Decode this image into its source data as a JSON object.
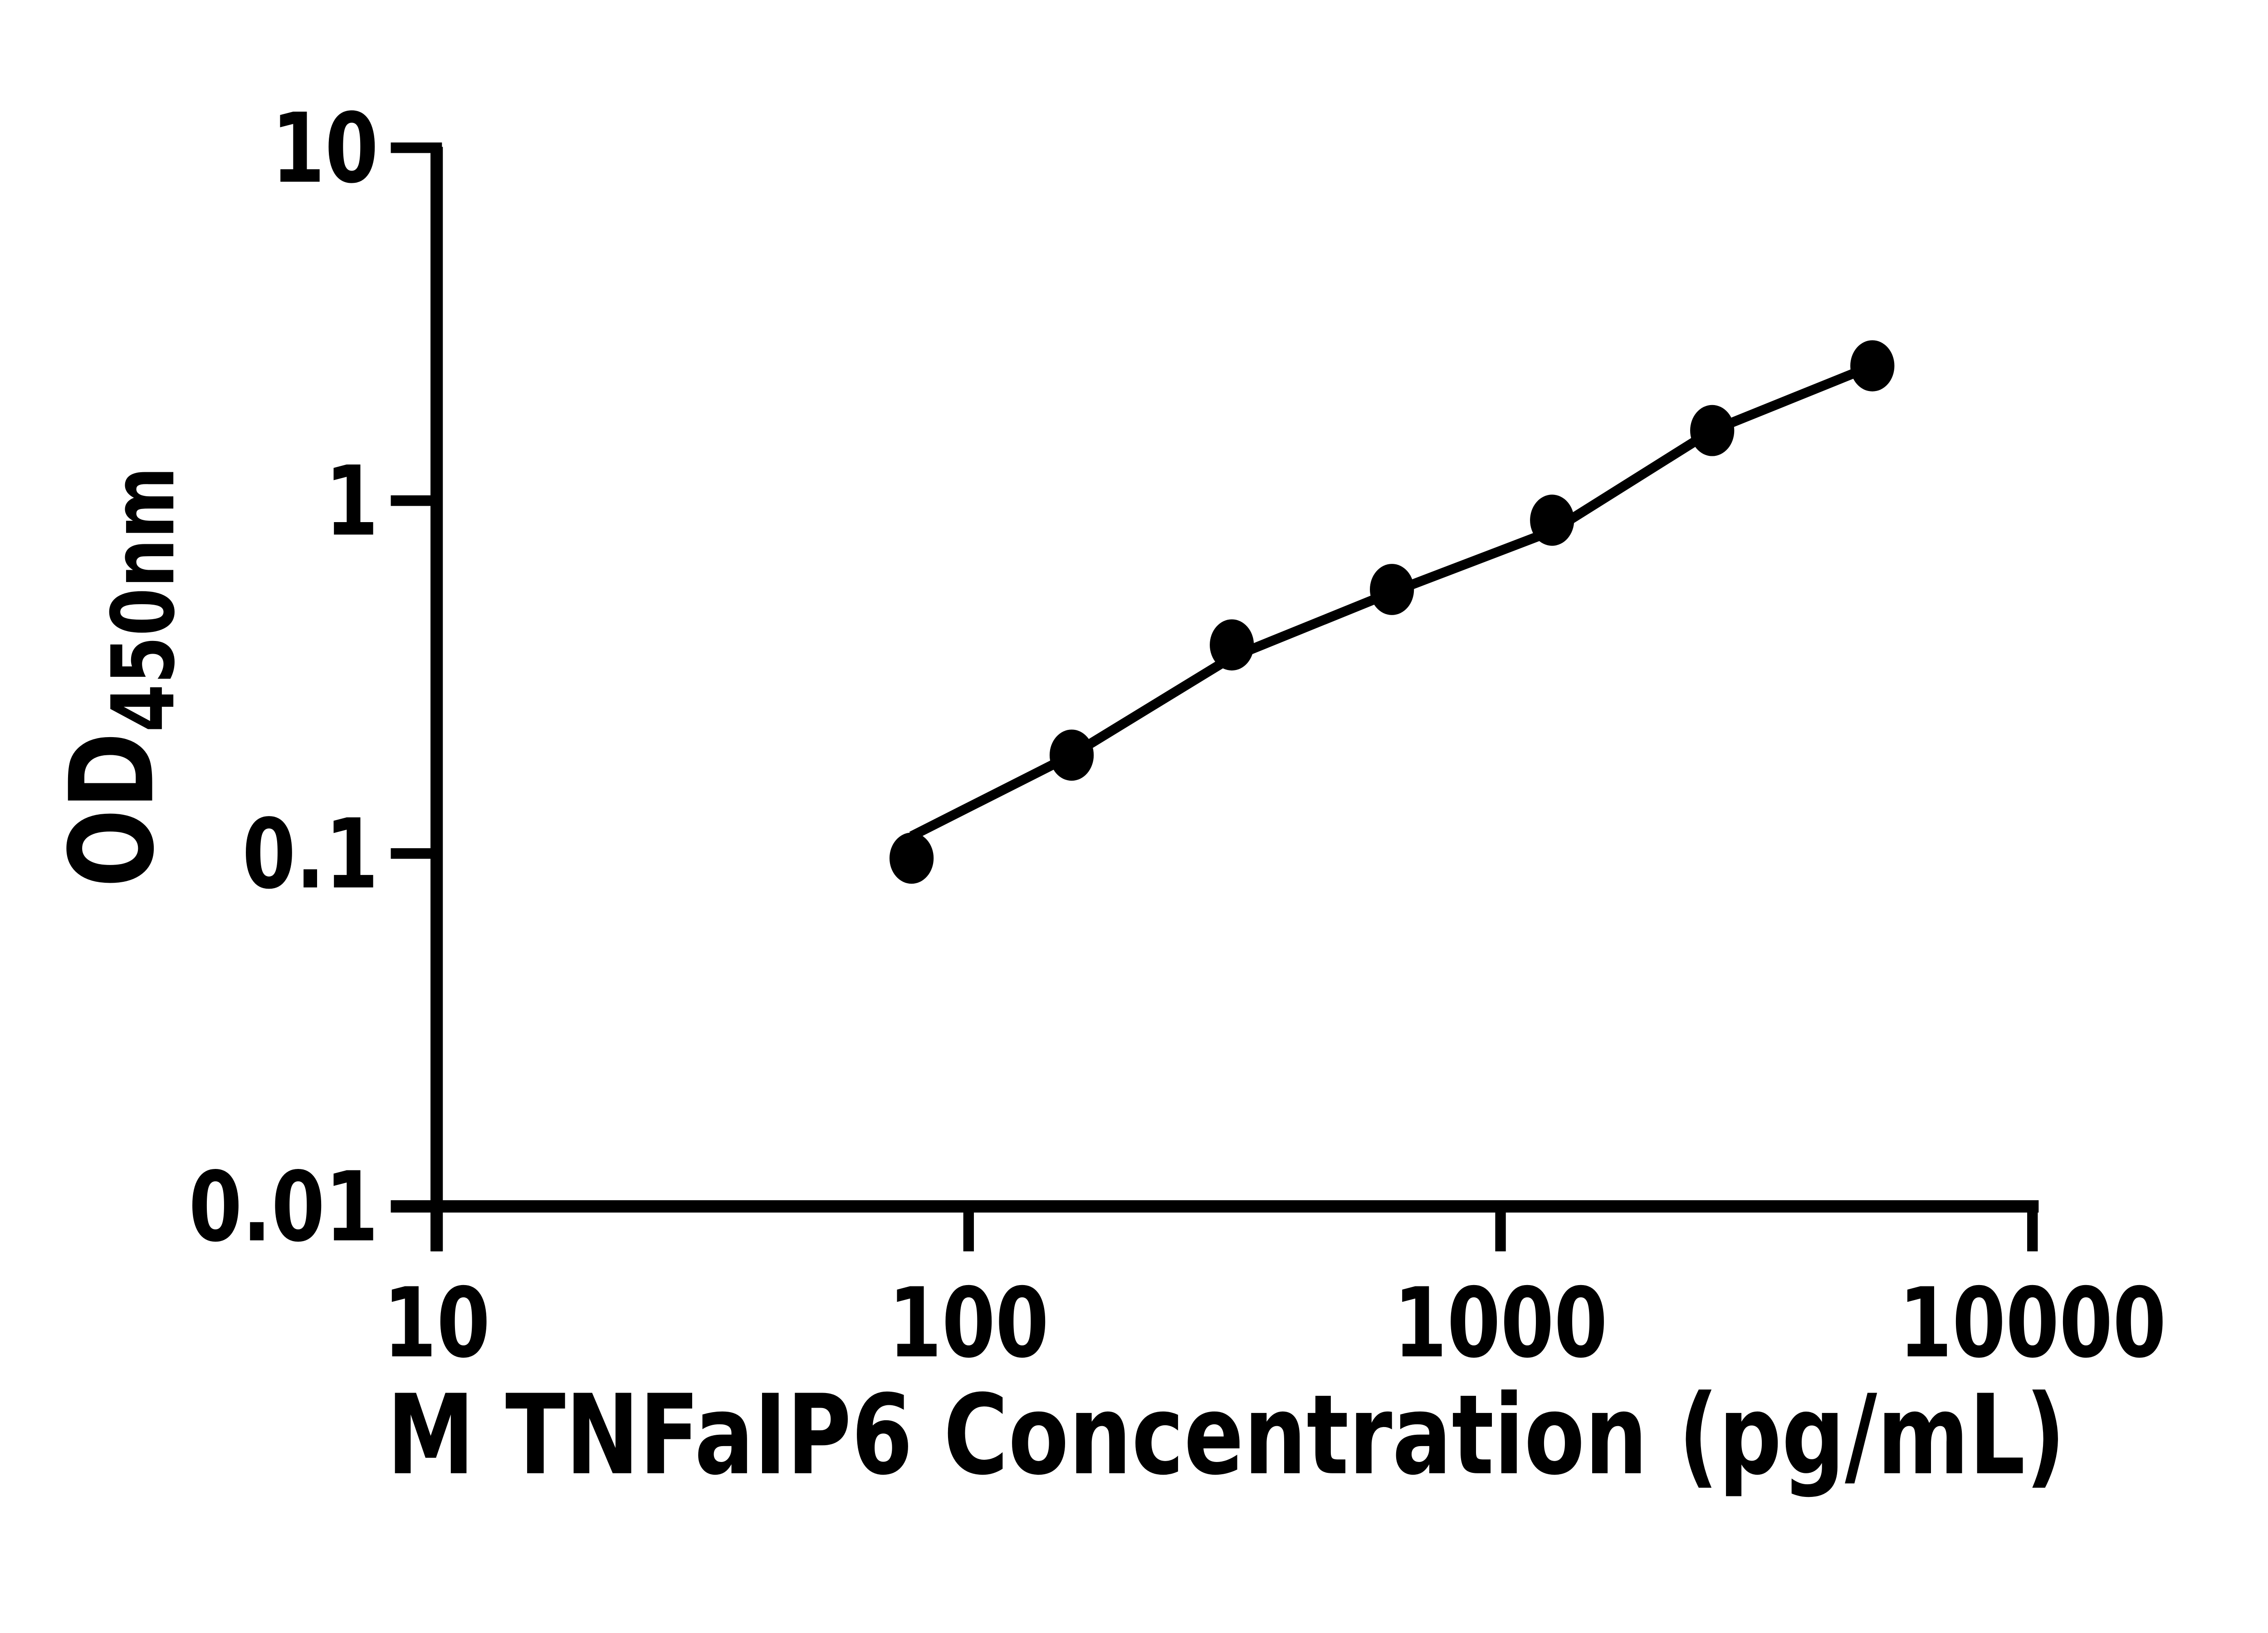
{
  "chart_data": {
    "type": "scatter",
    "title": "",
    "xlabel": "M TNFaIP6 Concentration (pg/mL)",
    "ylabel_main": "OD",
    "ylabel_sub": "450nm",
    "x_scale": "log10",
    "y_scale": "log10",
    "xlim": [
      10,
      10000
    ],
    "ylim": [
      0.01,
      10
    ],
    "grid": false,
    "legend": false,
    "background_color": "#FFFFFF",
    "foreground_color": "#000000",
    "x_ticks": [
      {
        "value": 10,
        "label": "10"
      },
      {
        "value": 100,
        "label": "100"
      },
      {
        "value": 1000,
        "label": "1000"
      },
      {
        "value": 10000,
        "label": "10000"
      }
    ],
    "y_ticks": [
      {
        "value": 10,
        "label": "10"
      },
      {
        "value": 1,
        "label": "1"
      },
      {
        "value": 0.1,
        "label": "0.1"
      },
      {
        "value": 0.01,
        "label": "0.01"
      }
    ],
    "series": [
      {
        "name": "standard-curve-points",
        "marker": "filled-circle",
        "color": "#000000",
        "points": [
          {
            "x": 78.125,
            "od": 0.097
          },
          {
            "x": 156.25,
            "od": 0.19
          },
          {
            "x": 312.5,
            "od": 0.39
          },
          {
            "x": 625,
            "od": 0.56
          },
          {
            "x": 1250,
            "od": 0.88
          },
          {
            "x": 2500,
            "od": 1.58
          },
          {
            "x": 5000,
            "od": 2.41
          }
        ]
      }
    ],
    "trend_line": {
      "name": "fitted-standard-curve",
      "color": "#000000",
      "points_x": [
        78.125,
        156.25,
        312.5,
        625,
        1250,
        2500,
        5000
      ],
      "points_od": [
        0.112,
        0.19,
        0.36,
        0.55,
        0.82,
        1.58,
        2.41
      ]
    }
  }
}
